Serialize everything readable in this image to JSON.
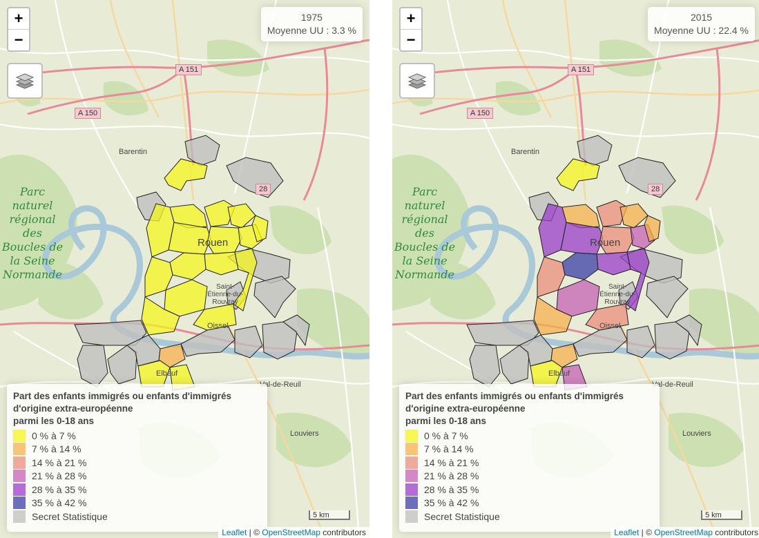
{
  "maps": [
    {
      "id": "left",
      "info": {
        "year": "1975",
        "average": "Moyenne UU : 3.3 %"
      },
      "communes": [
        {
          "c": "0"
        },
        {
          "c": "0"
        },
        {
          "c": "0"
        },
        {
          "c": "0"
        },
        {
          "c": "0"
        },
        {
          "c": "0"
        },
        {
          "c": "0"
        },
        {
          "c": "0"
        },
        {
          "c": "0"
        },
        {
          "c": "0"
        },
        {
          "c": "0"
        },
        {
          "c": "0"
        },
        {
          "c": "0"
        },
        {
          "c": "0"
        },
        {
          "c": "1"
        },
        {
          "c": "0"
        },
        {
          "c": "0"
        },
        {
          "c": "0"
        },
        {
          "c": "0"
        }
      ]
    },
    {
      "id": "right",
      "info": {
        "year": "2015",
        "average": "Moyenne UU : 22.4 %"
      },
      "communes": [
        {
          "c": "0"
        },
        {
          "c": "1"
        },
        {
          "c": "2"
        },
        {
          "c": "1"
        },
        {
          "c": "4"
        },
        {
          "c": "4"
        },
        {
          "c": "2"
        },
        {
          "c": "3"
        },
        {
          "c": "4"
        },
        {
          "c": "5"
        },
        {
          "c": "2"
        },
        {
          "c": "3"
        },
        {
          "c": "2"
        },
        {
          "c": "1"
        },
        {
          "c": "1"
        },
        {
          "c": "0"
        },
        {
          "c": "4"
        },
        {
          "c": "1"
        },
        {
          "c": "3"
        }
      ]
    }
  ],
  "gray_communes": 14,
  "zoom_in_label": "+",
  "zoom_out_label": "−",
  "legend": {
    "title_line1": "Part des enfants immigrés ou enfants d'immigrés",
    "title_line2": "d'origine extra-européenne",
    "title_line3": "parmi les 0-18 ans",
    "items": [
      {
        "label": "0 % à 7 %",
        "color": "#f5f51e"
      },
      {
        "label": "7 % à 14 %",
        "color": "#f6b24d"
      },
      {
        "label": "14 % à 21 %",
        "color": "#ec8f7c"
      },
      {
        "label": "21 % à 28 %",
        "color": "#c563b6"
      },
      {
        "label": "28 % à 35 %",
        "color": "#9b3ec9"
      },
      {
        "label": "35 % à 42 %",
        "color": "#3b3fa6"
      },
      {
        "label": "Secret Statistique",
        "color": "#bfbfbf"
      }
    ]
  },
  "basemap_labels": {
    "park": "Parc naturel régional des Boucles de la Seine Normande",
    "barentin": "Barentin",
    "rouen": "Rouen",
    "oissel": "Oissel",
    "elbeuf": "Elbeuf",
    "louviers": "Louviers",
    "valdereuil": "Val-de-Reuil",
    "saint_etienne": "Saint-Étienne-du-Rouvray",
    "a151": "A 151",
    "a150": "A 150",
    "n28": "28"
  },
  "scale": "5 km",
  "attribution": {
    "leaflet": "Leaflet",
    "sep": " | © ",
    "osm": "OpenStreetMap",
    "suffix": " contributors"
  }
}
